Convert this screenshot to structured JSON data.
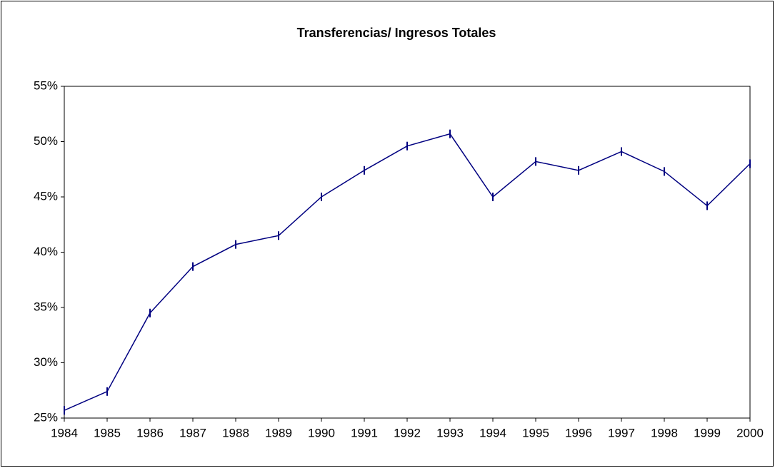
{
  "chart_data": {
    "type": "line",
    "title": "Transferencias/ Ingresos Totales",
    "x": [
      1984,
      1985,
      1986,
      1987,
      1988,
      1989,
      1990,
      1991,
      1992,
      1993,
      1994,
      1995,
      1996,
      1997,
      1998,
      1999,
      2000
    ],
    "xlim": [
      1984,
      2000
    ],
    "xticks": [
      1984,
      1985,
      1986,
      1987,
      1988,
      1989,
      1990,
      1991,
      1992,
      1993,
      1994,
      1995,
      1996,
      1997,
      1998,
      1999,
      2000
    ],
    "series": [
      {
        "color": "#000080",
        "values": [
          25.7,
          27.4,
          34.5,
          38.7,
          40.7,
          41.5,
          45.0,
          47.4,
          49.6,
          50.7,
          45.0,
          48.2,
          47.4,
          49.1,
          47.3,
          44.2,
          48.0
        ]
      }
    ],
    "ylim": [
      25,
      55
    ],
    "yticks": [
      {
        "value": 25,
        "label": "25%"
      },
      {
        "value": 30,
        "label": "30%"
      },
      {
        "value": 35,
        "label": "35%"
      },
      {
        "value": 40,
        "label": "40%"
      },
      {
        "value": 45,
        "label": "45%"
      },
      {
        "value": 50,
        "label": "50%"
      },
      {
        "value": 55,
        "label": "55%"
      }
    ],
    "grid": false
  }
}
